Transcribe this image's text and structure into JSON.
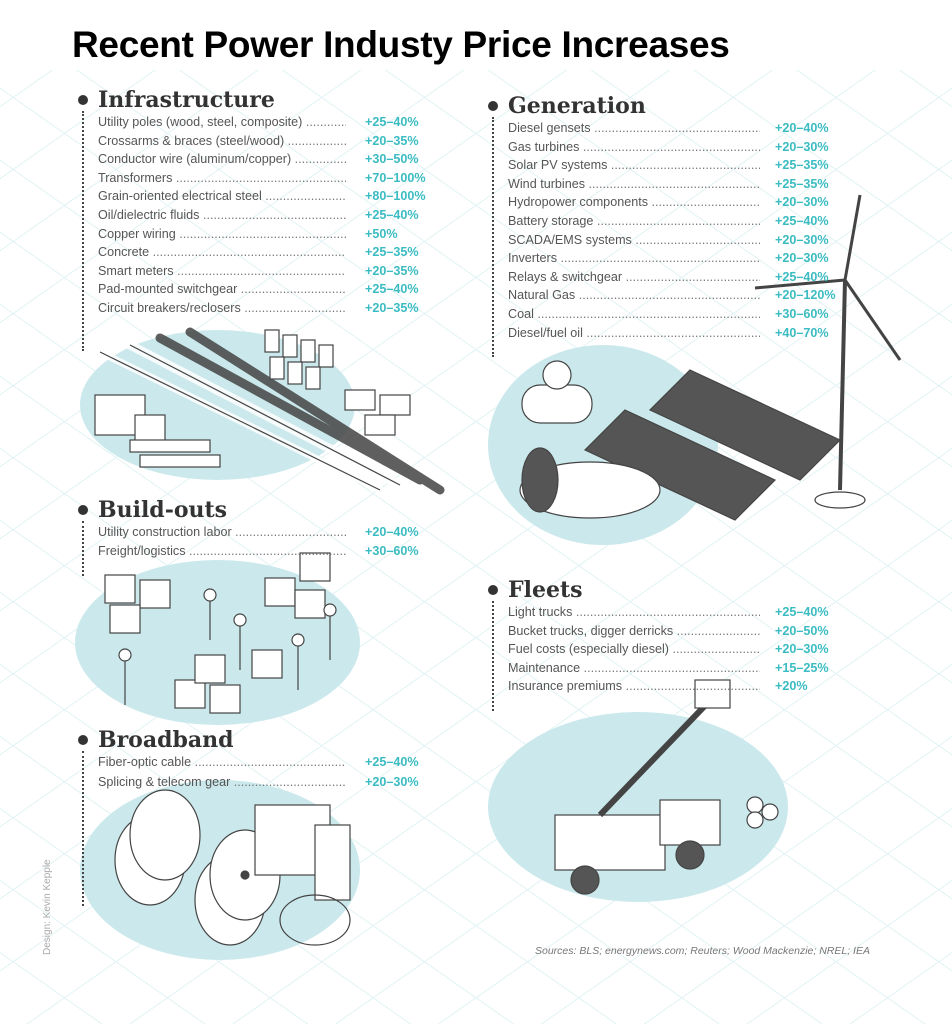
{
  "title": "Recent Power Industy Price Increases",
  "colors": {
    "accent": "#3bbcc2",
    "blob": "#cbe9ec",
    "heading": "#333333"
  },
  "sections": {
    "infrastructure": {
      "heading": "Infrastructure",
      "items": [
        {
          "label": "Utility poles (wood, steel, composite)",
          "value": "+25–40%"
        },
        {
          "label": "Crossarms & braces (steel/wood)",
          "value": "+20–35%"
        },
        {
          "label": "Conductor wire (aluminum/copper)",
          "value": "+30–50%"
        },
        {
          "label": "Transformers",
          "value": "+70–100%"
        },
        {
          "label": "Grain-oriented electrical steel",
          "value": "+80–100%"
        },
        {
          "label": "Oil/dielectric fluids",
          "value": "+25–40%"
        },
        {
          "label": "Copper wiring",
          "value": "+50%"
        },
        {
          "label": "Concrete",
          "value": "+25–35%"
        },
        {
          "label": "Smart meters",
          "value": "+20–35%"
        },
        {
          "label": "Pad-mounted switchgear",
          "value": "+25–40%"
        },
        {
          "label": "Circuit breakers/reclosers",
          "value": "+20–35%"
        }
      ]
    },
    "generation": {
      "heading": "Generation",
      "items": [
        {
          "label": "Diesel gensets",
          "value": "+20–40%"
        },
        {
          "label": "Gas turbines",
          "value": "+20–30%"
        },
        {
          "label": "Solar PV systems",
          "value": "+25–35%"
        },
        {
          "label": "Wind turbines",
          "value": "+25–35%"
        },
        {
          "label": "Hydropower components",
          "value": "+20–30%"
        },
        {
          "label": "Battery storage",
          "value": "+25–40%"
        },
        {
          "label": "SCADA/EMS systems",
          "value": "+20–30%"
        },
        {
          "label": "Inverters",
          "value": "+20–30%"
        },
        {
          "label": "Relays & switchgear",
          "value": "+25–40%"
        },
        {
          "label": "Natural Gas",
          "value": "+20–120%"
        },
        {
          "label": "Coal",
          "value": "+30–60%"
        },
        {
          "label": "Diesel/fuel oil",
          "value": "+40–70%"
        }
      ]
    },
    "buildouts": {
      "heading": "Build-outs",
      "items": [
        {
          "label": "Utility construction labor",
          "value": "+20–40%"
        },
        {
          "label": "Freight/logistics",
          "value": "+30–60%"
        }
      ]
    },
    "broadband": {
      "heading": "Broadband",
      "items": [
        {
          "label": "Fiber-optic cable",
          "value": "+25–40%"
        },
        {
          "label": "Splicing & telecom gear",
          "value": "+20–30%"
        }
      ]
    },
    "fleets": {
      "heading": "Fleets",
      "items": [
        {
          "label": "Light trucks",
          "value": "+25–40%"
        },
        {
          "label": "Bucket trucks, digger derricks",
          "value": "+20–50%"
        },
        {
          "label": "Fuel costs (especially diesel)",
          "value": "+20–30%"
        },
        {
          "label": "Maintenance",
          "value": "+15–25%"
        },
        {
          "label": "Insurance premiums",
          "value": "+20%"
        }
      ]
    }
  },
  "sources": "Sources: BLS; energynews.com; Reuters; Wood Mackenzie; NREL; IEA",
  "credit": "Design: Kevin Kepple"
}
